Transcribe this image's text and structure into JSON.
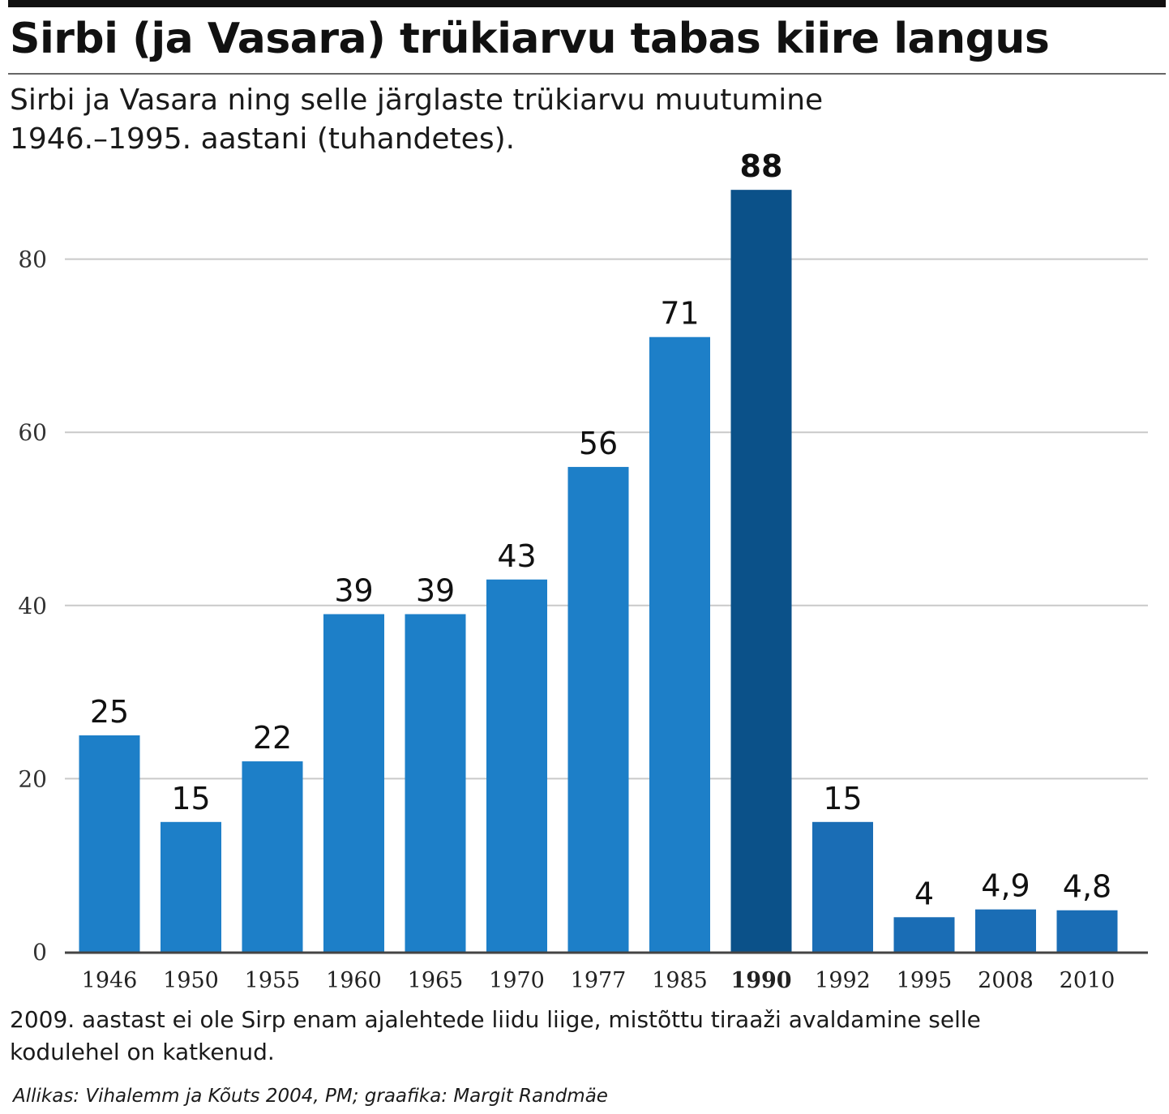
{
  "header": {
    "title": "Sirbi (ja Vasara) trükiarvu tabas kiire langus",
    "subtitle": "Sirbi ja Vasara ning selle järglaste trükiarvu muutumine\n1946.–1995. aastani (tuhandetes)."
  },
  "footer": {
    "note": "2009. aastast ei ole Sirp enam ajalehtede liidu liige, mistõttu tiraaži avaldamine selle\nkodulehel on katkenud.",
    "source": "Allikas: Vihalemm ja Kõuts 2004, PM; graafika: Margit Randmäe"
  },
  "chart_data": {
    "type": "bar",
    "title": "Sirbi (ja Vasara) trükiarvu tabas kiire langus",
    "subtitle": "Sirbi ja Vasara ning selle järglaste trükiarvu muutumine 1946.–1995. aastani (tuhandetes).",
    "xlabel": "",
    "ylabel": "",
    "categories": [
      "1946",
      "1950",
      "1955",
      "1960",
      "1965",
      "1970",
      "1977",
      "1985",
      "1990",
      "1992",
      "1995",
      "2008",
      "2010"
    ],
    "values": [
      25,
      15,
      22,
      39,
      39,
      43,
      56,
      71,
      88,
      15,
      4,
      4.9,
      4.8
    ],
    "value_labels": [
      "25",
      "15",
      "22",
      "39",
      "39",
      "43",
      "56",
      "71",
      "88",
      "15",
      "4",
      "4,9",
      "4,8"
    ],
    "highlight_category": "1990",
    "ylim": [
      0,
      100
    ],
    "yticks": [
      0,
      20,
      40,
      60,
      80
    ],
    "grid": true,
    "legend": "none",
    "colors": {
      "bar": "#1d7fc8",
      "bar_highlight": "#0b5189",
      "bar_after": "#1a6db5",
      "grid": "#c9c9c9",
      "axis": "#444444"
    }
  }
}
